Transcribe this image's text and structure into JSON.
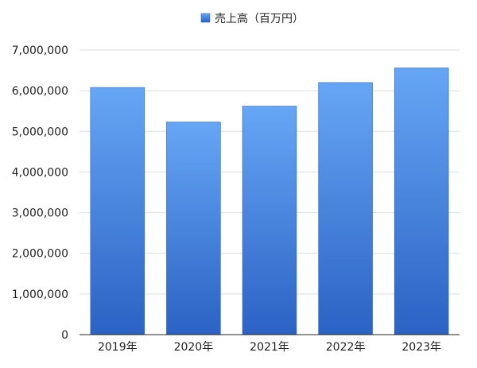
{
  "chart_data": {
    "type": "bar",
    "categories": [
      "2019年",
      "2020年",
      "2021年",
      "2022年",
      "2023年"
    ],
    "series": [
      {
        "name": "売上高（百万円）",
        "values": [
          6080000,
          5230000,
          5620000,
          6200000,
          6560000
        ]
      }
    ],
    "ylim": [
      0,
      7000000
    ],
    "yticks": [
      0,
      1000000,
      2000000,
      3000000,
      4000000,
      5000000,
      6000000,
      7000000
    ],
    "ytick_labels": [
      "0",
      "1,000,000",
      "2,000,000",
      "3,000,000",
      "4,000,000",
      "5,000,000",
      "6,000,000",
      "7,000,000"
    ],
    "grid": true,
    "legend_position": "top-center",
    "colors": {
      "bar_top": "#66a6f5",
      "bar_bottom": "#2b62c4",
      "bar_edge": "#2a5fc0",
      "grid": "#dddddd",
      "axis": "#222222"
    }
  }
}
